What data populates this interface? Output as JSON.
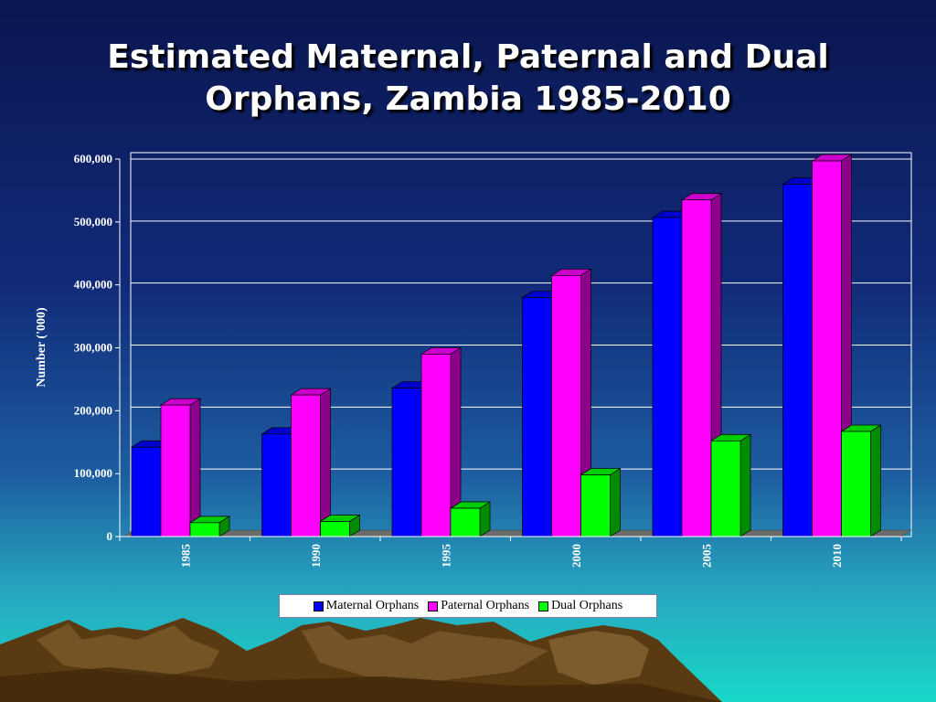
{
  "slide": {
    "title_line1": "Estimated Maternal, Paternal and Dual",
    "title_line2": "Orphans, Zambia 1985-2010"
  },
  "colors": {
    "maternal": "#0000ff",
    "paternal": "#ff00ff",
    "dual": "#00ff00",
    "plot_border": "#ffffff",
    "gridline": "#ffffff",
    "floor": "#6b6b6b"
  },
  "chart_data": {
    "type": "bar",
    "style": "3d-clustered-column",
    "title": "Estimated Maternal, Paternal and Dual Orphans, Zambia 1985-2010",
    "xlabel": "",
    "ylabel": "Number ('000)",
    "categories": [
      "1985",
      "1990",
      "1995",
      "2000",
      "2005",
      "2010"
    ],
    "ylim": [
      0,
      600000
    ],
    "yticks": [
      0,
      100000,
      200000,
      300000,
      400000,
      500000,
      600000
    ],
    "ytick_labels": [
      "0",
      "100,000",
      "200,000",
      "300,000",
      "400,000",
      "500,000",
      "600,000"
    ],
    "grid": true,
    "legend_position": "bottom",
    "series": [
      {
        "name": "Maternal Orphans",
        "color": "#0000ff",
        "values": [
          142000,
          163000,
          236000,
          380000,
          507000,
          560000
        ]
      },
      {
        "name": "Paternal Orphans",
        "color": "#ff00ff",
        "values": [
          209000,
          225000,
          290000,
          415000,
          535000,
          597000
        ]
      },
      {
        "name": "Dual Orphans",
        "color": "#00ff00",
        "values": [
          22000,
          24000,
          45000,
          98000,
          152000,
          167000
        ]
      }
    ]
  }
}
